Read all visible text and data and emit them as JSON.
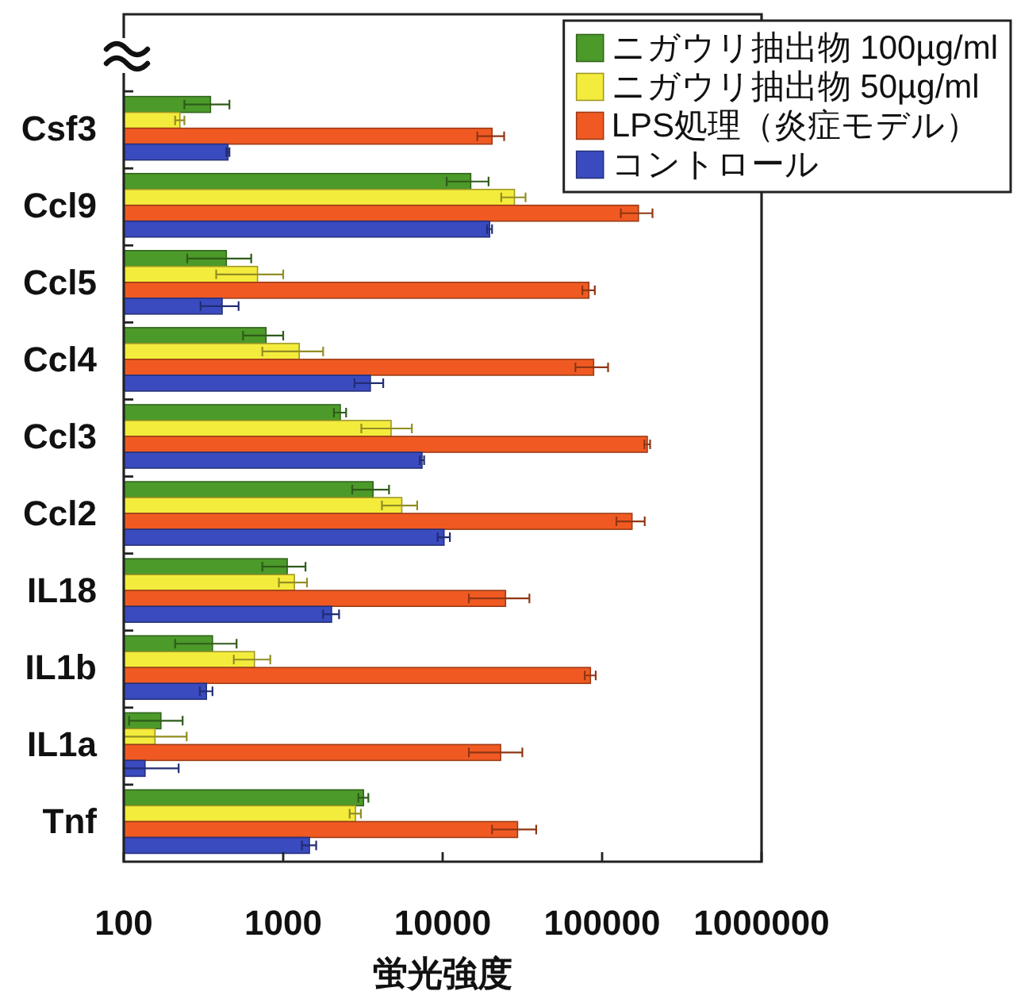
{
  "chart_data": {
    "type": "bar",
    "orientation": "horizontal",
    "log": "x",
    "xlim": [
      100,
      1000000
    ],
    "xticks": [
      100,
      1000,
      10000,
      100000,
      1000000
    ],
    "xlabel": "蛍光強度",
    "legend": "top right",
    "grid": false,
    "categories": [
      "Csf3",
      "Ccl9",
      "Ccl5",
      "Ccl4",
      "Ccl3",
      "Ccl2",
      "IL18",
      "IL1b",
      "IL1a",
      "Tnf"
    ],
    "series": [
      {
        "name": "ニガウリ抽出物 100µg/ml",
        "color": "#4c9a2a",
        "values": [
          350,
          15000,
          440,
          780,
          2280,
          3660,
          1060,
          360,
          171,
          3190
        ],
        "errors": [
          110,
          4400,
          190,
          220,
          200,
          950,
          320,
          150,
          63,
          230
        ]
      },
      {
        "name": "ニガウリ抽出物 50µg/ml",
        "color": "#f4ec3c",
        "values": [
          225,
          28200,
          690,
          1260,
          4750,
          5540,
          1175,
          660,
          157,
          2840
        ],
        "errors": [
          15,
          4900,
          310,
          520,
          1660,
          1380,
          235,
          170,
          [
            100,
            248
          ],
          230
        ]
      },
      {
        "name": "LPS処理（炎症モデル）",
        "color": "#f05a22",
        "values": [
          20400,
          169000,
          82600,
          88500,
          192000,
          154000,
          24800,
          84500,
          23100,
          29500
        ],
        "errors": [
          3900,
          38000,
          7400,
          20500,
          8000,
          31000,
          10200,
          6700,
          8500,
          9100
        ]
      },
      {
        "name": "コントロール",
        "color": "#3a4bbf",
        "values": [
          450,
          19700,
          414,
          3520,
          7420,
          10200,
          2010,
          330,
          136,
          1460
        ],
        "errors": [
          10,
          700,
          111,
          720,
          230,
          900,
          230,
          30,
          [
            100,
            221
          ],
          150
        ]
      }
    ]
  }
}
